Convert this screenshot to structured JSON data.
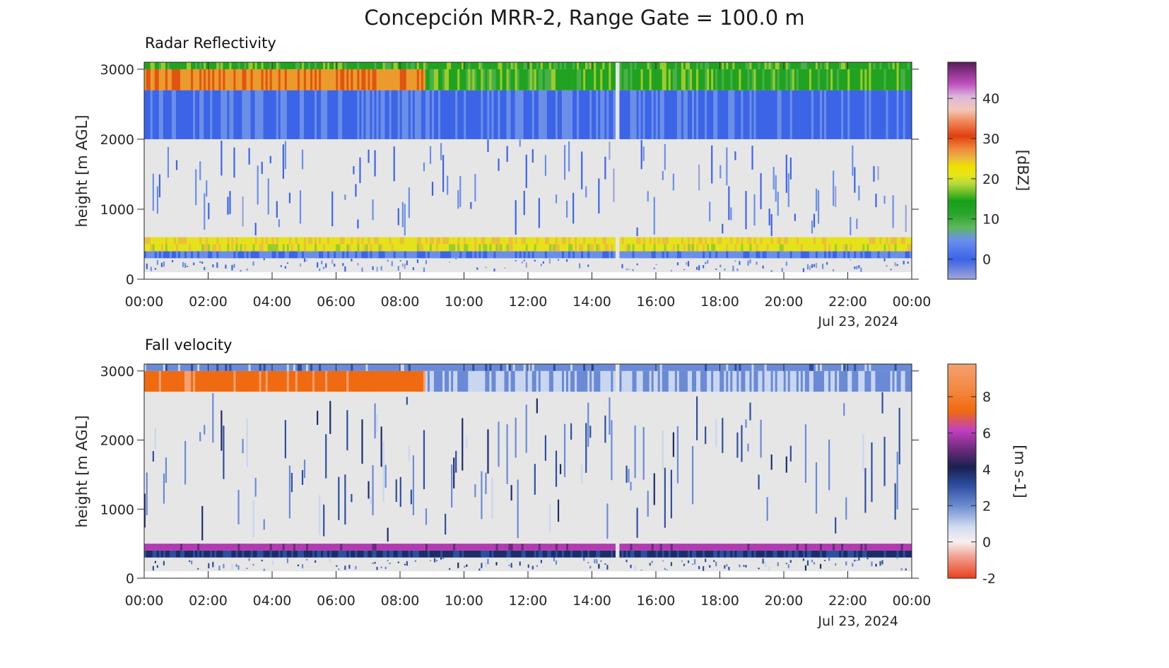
{
  "figure_title": "Concepción MRR-2, Range Gate = 100.0 m",
  "chart_data": [
    {
      "type": "heatmap",
      "title": "Radar Reflectivity",
      "ylabel": "height [m AGL]",
      "xlabel": "",
      "date_label": "Jul 23, 2024",
      "x_ticks": [
        "00:00",
        "02:00",
        "04:00",
        "06:00",
        "08:00",
        "10:00",
        "12:00",
        "14:00",
        "16:00",
        "18:00",
        "20:00",
        "22:00",
        "00:00"
      ],
      "xlim_hours": [
        0,
        24
      ],
      "y_ticks": [
        0,
        1000,
        2000,
        3000
      ],
      "ylim": [
        0,
        3100
      ],
      "data_height_range": [
        100,
        3100
      ],
      "data_gap_hours": [
        14.75,
        14.9
      ],
      "colorbar": {
        "label": "[dBZ]",
        "ticks": [
          0,
          10,
          20,
          30,
          40
        ],
        "range": [
          -5,
          49
        ]
      },
      "layers": [
        {
          "from_m": 100,
          "to_m": 300,
          "value": 1,
          "note": "sparse"
        },
        {
          "from_m": 300,
          "to_m": 400,
          "value": 4
        },
        {
          "from_m": 400,
          "to_m": 500,
          "value": 20
        },
        {
          "from_m": 500,
          "to_m": 600,
          "value": 21
        },
        {
          "from_m": 600,
          "to_m": 2000,
          "value": 2,
          "note": "sparse"
        },
        {
          "from_m": 2000,
          "to_m": 2700,
          "value": 2
        },
        {
          "from_m": 2700,
          "to_m": 3000,
          "value_00_09h": 28,
          "value_09_24h": 12
        },
        {
          "from_m": 3000,
          "to_m": 3100,
          "value": 12
        }
      ]
    },
    {
      "type": "heatmap",
      "title": "Fall velocity",
      "ylabel": "height [m AGL]",
      "xlabel": "",
      "date_label": "Jul 23, 2024",
      "x_ticks": [
        "00:00",
        "02:00",
        "04:00",
        "06:00",
        "08:00",
        "10:00",
        "12:00",
        "14:00",
        "16:00",
        "18:00",
        "20:00",
        "22:00",
        "00:00"
      ],
      "xlim_hours": [
        0,
        24
      ],
      "y_ticks": [
        0,
        1000,
        2000,
        3000
      ],
      "ylim": [
        0,
        3100
      ],
      "data_height_range": [
        100,
        3100
      ],
      "data_gap_hours": [
        14.75,
        14.9
      ],
      "colorbar": {
        "label": "[m s-1]",
        "ticks": [
          -2,
          0,
          2,
          4,
          6,
          8
        ],
        "range": [
          -2,
          9.8
        ]
      },
      "layers": [
        {
          "from_m": 100,
          "to_m": 300,
          "value": 2.5,
          "note": "sparse"
        },
        {
          "from_m": 300,
          "to_m": 400,
          "value": 3.6
        },
        {
          "from_m": 400,
          "to_m": 500,
          "value": 6.0
        },
        {
          "from_m": 500,
          "to_m": 2700,
          "value": 2.5,
          "note": "sparse"
        },
        {
          "from_m": 2700,
          "to_m": 3000,
          "value_00_09h": 8.3,
          "value_09_24h": 1.5
        },
        {
          "from_m": 3000,
          "to_m": 3100,
          "value": 2.0
        }
      ]
    }
  ]
}
